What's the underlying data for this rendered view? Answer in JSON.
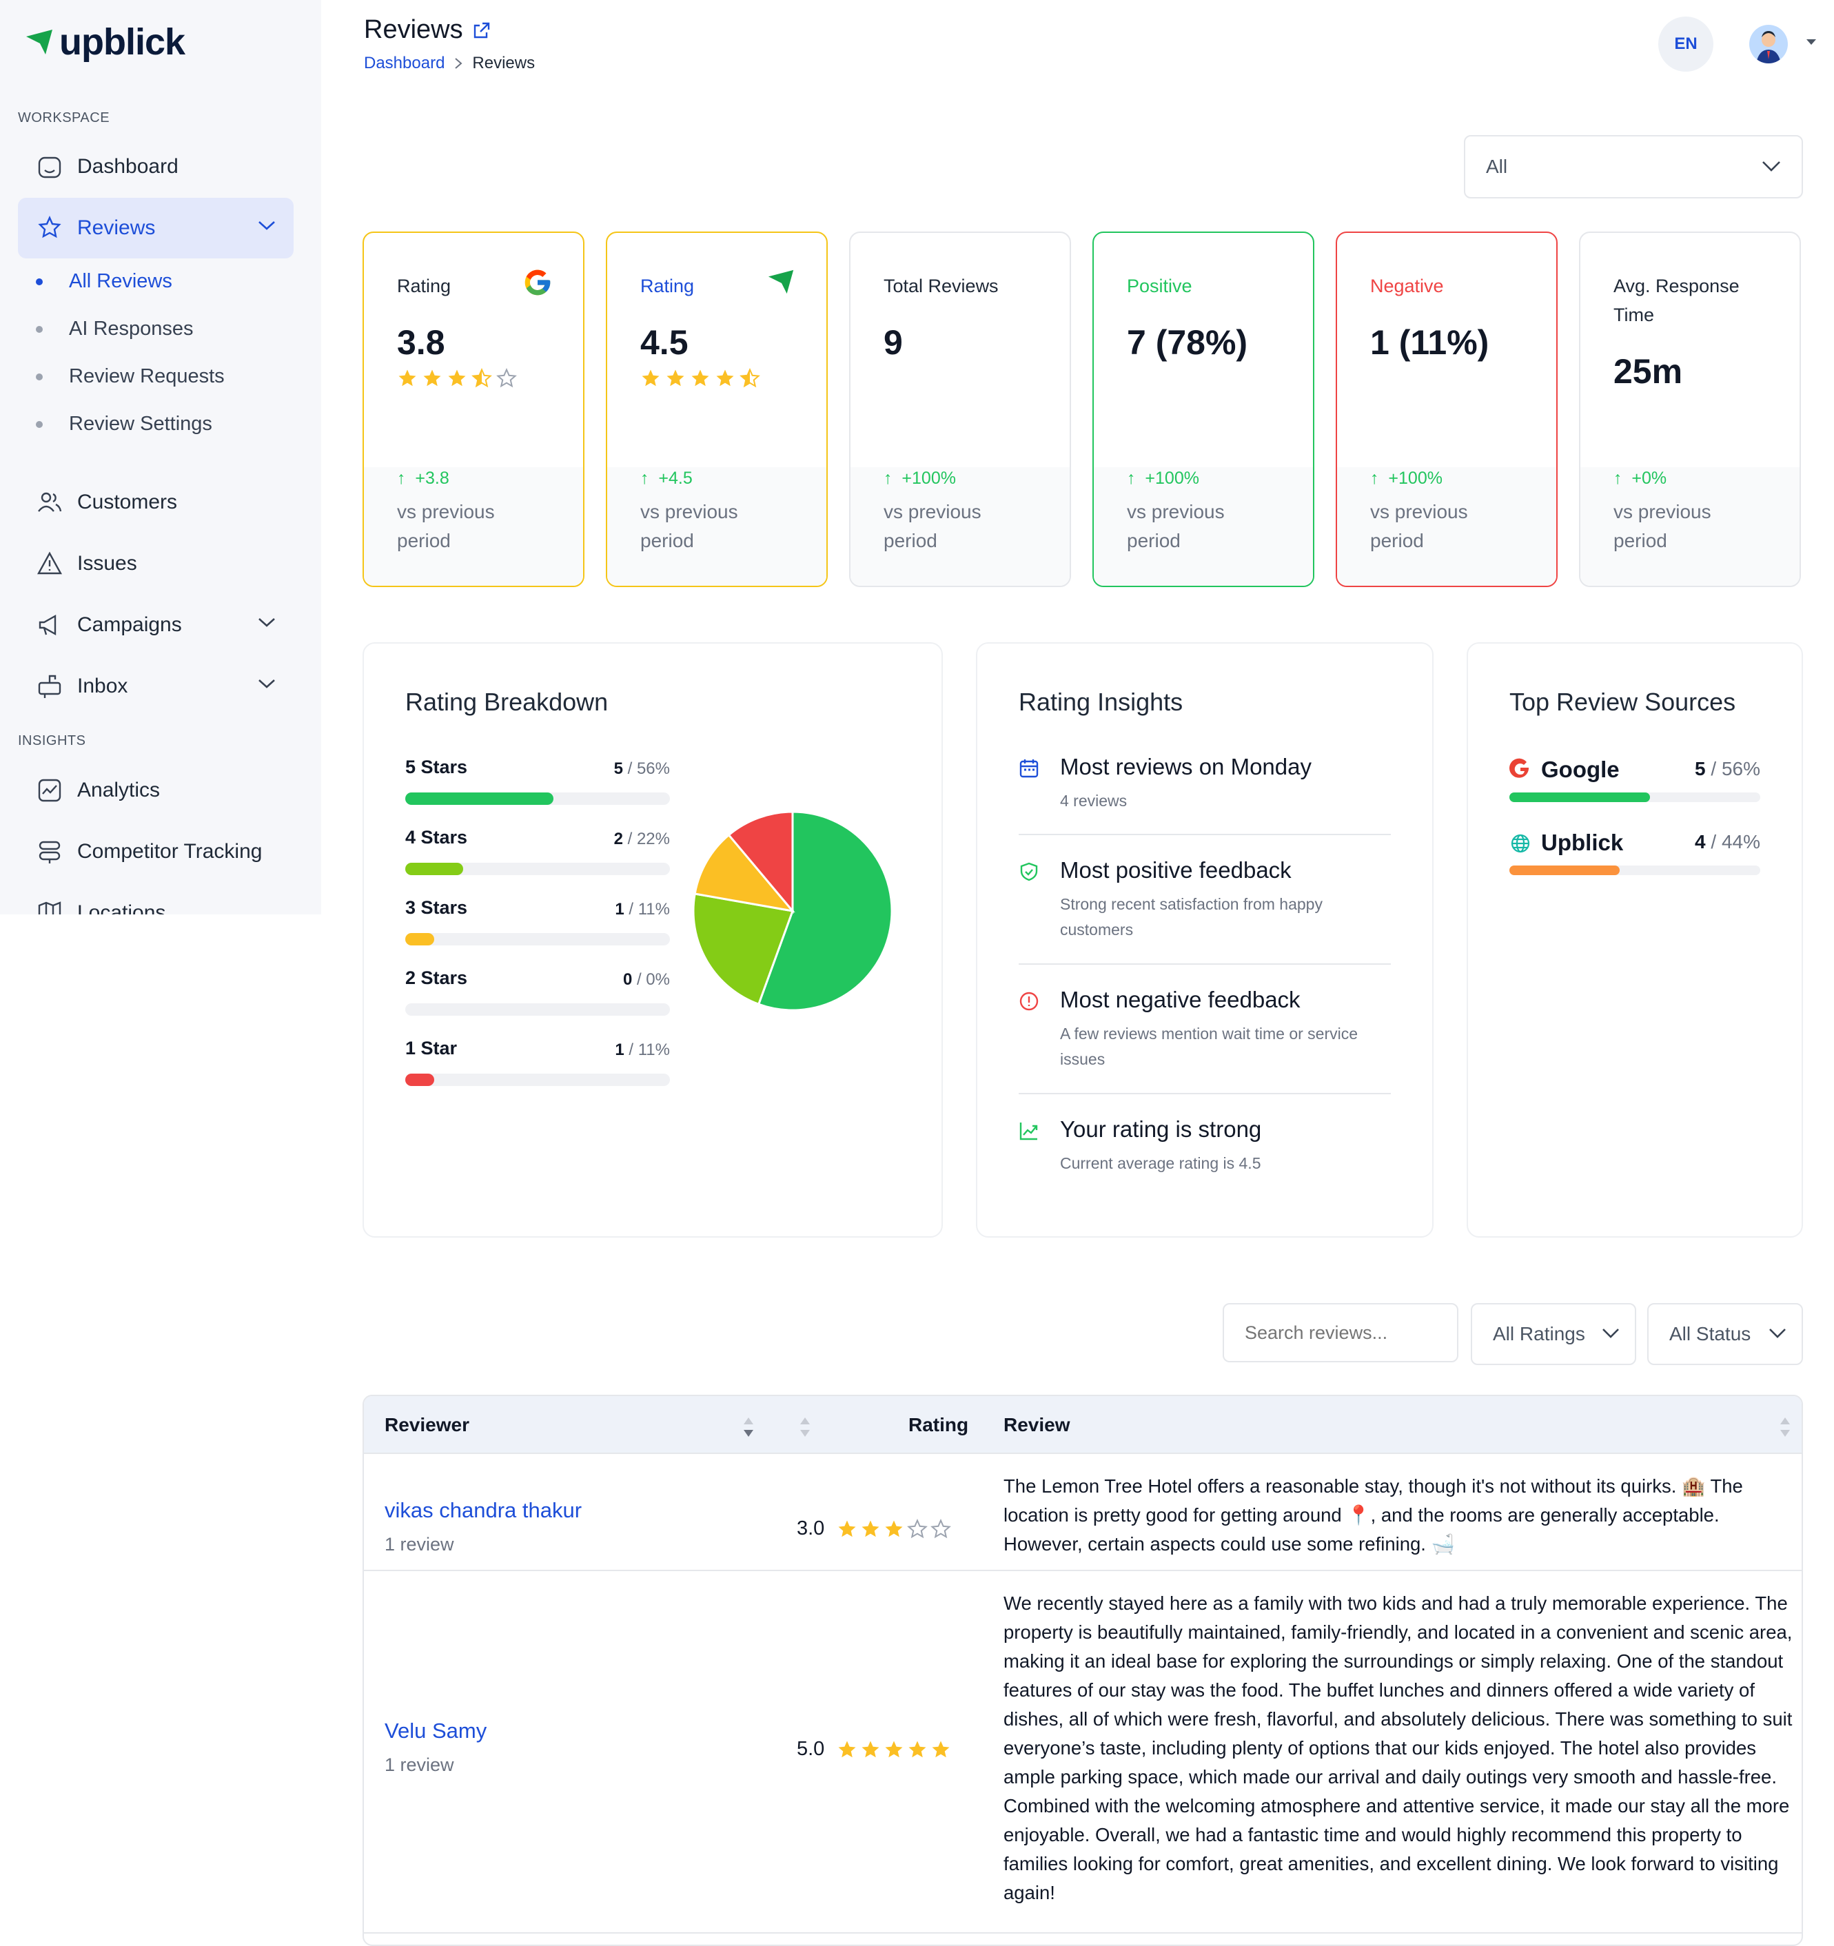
{
  "brand": {
    "name": "upblick"
  },
  "sidebar": {
    "workspace_label": "WORKSPACE",
    "insights_label": "INSIGHTS",
    "items": {
      "dashboard": "Dashboard",
      "reviews": "Reviews",
      "customers": "Customers",
      "issues": "Issues",
      "campaigns": "Campaigns",
      "inbox": "Inbox",
      "analytics": "Analytics",
      "competitor": "Competitor Tracking",
      "locations": "Locations"
    },
    "review_sub": [
      "All Reviews",
      "AI Responses",
      "Review Requests",
      "Review Settings"
    ]
  },
  "header": {
    "title": "Reviews",
    "breadcrumb": {
      "home": "Dashboard",
      "sep": ">",
      "current": "Reviews"
    },
    "lang": "EN"
  },
  "filter": {
    "period": "All"
  },
  "stats": [
    {
      "label": "Rating",
      "value": "3.8",
      "rating": 3.5,
      "delta": "+3.8",
      "prev": "vs previous period",
      "brand": "google-icon",
      "border": "#f5c518",
      "label_color": "#1f2937"
    },
    {
      "label": "Rating",
      "value": "4.5",
      "rating": 4.5,
      "delta": "+4.5",
      "prev": "vs previous period",
      "brand": "upblick-icon",
      "border": "#f5c518",
      "label_color": "#1d4ed8"
    },
    {
      "label": "Total Reviews",
      "value": "9",
      "delta": "+100%",
      "prev": "vs previous period",
      "border": "#e5e7eb",
      "label_color": "#1f2937"
    },
    {
      "label": "Positive",
      "value": "7 (78%)",
      "delta": "+100%",
      "prev": "vs previous period",
      "border": "#22c55e",
      "label_color": "#22c55e"
    },
    {
      "label": "Negative",
      "value": "1 (11%)",
      "delta": "+100%",
      "prev": "vs previous period",
      "border": "#ef4444",
      "label_color": "#ef4444"
    },
    {
      "label": "Avg. Response Time",
      "value": "25m",
      "delta": "+0%",
      "prev": "vs previous period",
      "border": "#e5e7eb",
      "label_color": "#1f2937"
    }
  ],
  "breakdown": {
    "title": "Rating Breakdown",
    "rows": [
      {
        "name": "5 Stars",
        "count": "5",
        "pct": "/ 56%",
        "value": 0.56,
        "color": "#22c55e"
      },
      {
        "name": "4 Stars",
        "count": "2",
        "pct": "/ 22%",
        "value": 0.22,
        "color": "#84cc16"
      },
      {
        "name": "3 Stars",
        "count": "1",
        "pct": "/ 11%",
        "value": 0.11,
        "color": "#fbbf24"
      },
      {
        "name": "2 Stars",
        "count": "0",
        "pct": "/ 0%",
        "value": 0,
        "color": "#f97316"
      },
      {
        "name": "1 Star",
        "count": "1",
        "pct": "/ 11%",
        "value": 0.11,
        "color": "#ef4444"
      }
    ]
  },
  "chart_data": {
    "type": "pie",
    "categories": [
      "5 Stars",
      "4 Stars",
      "3 Stars",
      "2 Stars",
      "1 Star"
    ],
    "values": [
      5,
      2,
      1,
      0,
      1
    ],
    "colors": [
      "#22c55e",
      "#84cc16",
      "#fbbf24",
      "#f97316",
      "#ef4444"
    ]
  },
  "insights": {
    "title": "Rating Insights",
    "items": [
      {
        "title": "Most reviews on Monday",
        "sub": "4 reviews",
        "icon": "calendar-icon"
      },
      {
        "title": "Most positive feedback",
        "sub": "Strong recent satisfaction from happy customers",
        "icon": "shield-check-icon"
      },
      {
        "title": "Most negative feedback",
        "sub": "A few reviews mention wait time or service issues",
        "icon": "alert-icon"
      },
      {
        "title": "Your rating is strong",
        "sub": "Current average rating is 4.5",
        "icon": "trend-up-icon"
      }
    ]
  },
  "sources": {
    "title": "Top Review Sources",
    "items": [
      {
        "name": "Google",
        "count": "5",
        "pct": "/ 56%",
        "value": 0.56,
        "color": "#22c55e",
        "icon": "google-icon"
      },
      {
        "name": "Upblick",
        "count": "4",
        "pct": "/ 44%",
        "value": 0.44,
        "color": "#fb923c",
        "icon": "globe-icon"
      }
    ]
  },
  "review_filters": {
    "search_placeholder": "Search reviews...",
    "ratings": "All Ratings",
    "status": "All Status"
  },
  "table": {
    "columns": {
      "reviewer": "Reviewer",
      "rating": "Rating",
      "review": "Review"
    },
    "rows": [
      {
        "name": "vikas chandra thakur",
        "count": "1 review",
        "rating": "3.0",
        "stars": 3,
        "text": "The Lemon Tree Hotel offers a reasonable stay, though it's not without its quirks. 🏨 The location is pretty good for getting around 📍, and the rooms are generally acceptable. However, certain aspects could use some refining. 🛁"
      },
      {
        "name": "Velu Samy",
        "count": "1 review",
        "rating": "5.0",
        "stars": 5,
        "text": "We recently stayed here as a family with two kids and had a truly memorable experience. The property is beautifully maintained, family-friendly, and located in a convenient and scenic area, making it an ideal base for exploring the surroundings or simply relaxing. One of the standout features of our stay was the food. The buffet lunches and dinners offered a wide variety of dishes, all of which were fresh, flavorful, and absolutely delicious. There was something to suit everyone’s taste, including plenty of options that our kids enjoyed. The hotel also provides ample parking space, which made our arrival and daily outings very smooth and hassle-free. Combined with the welcoming atmosphere and attentive service, it made our stay all the more enjoyable. Overall, we had a fantastic time and would highly recommend this property to families looking for comfort, great amenities, and excellent dining. We look forward to visiting again!"
      }
    ]
  }
}
